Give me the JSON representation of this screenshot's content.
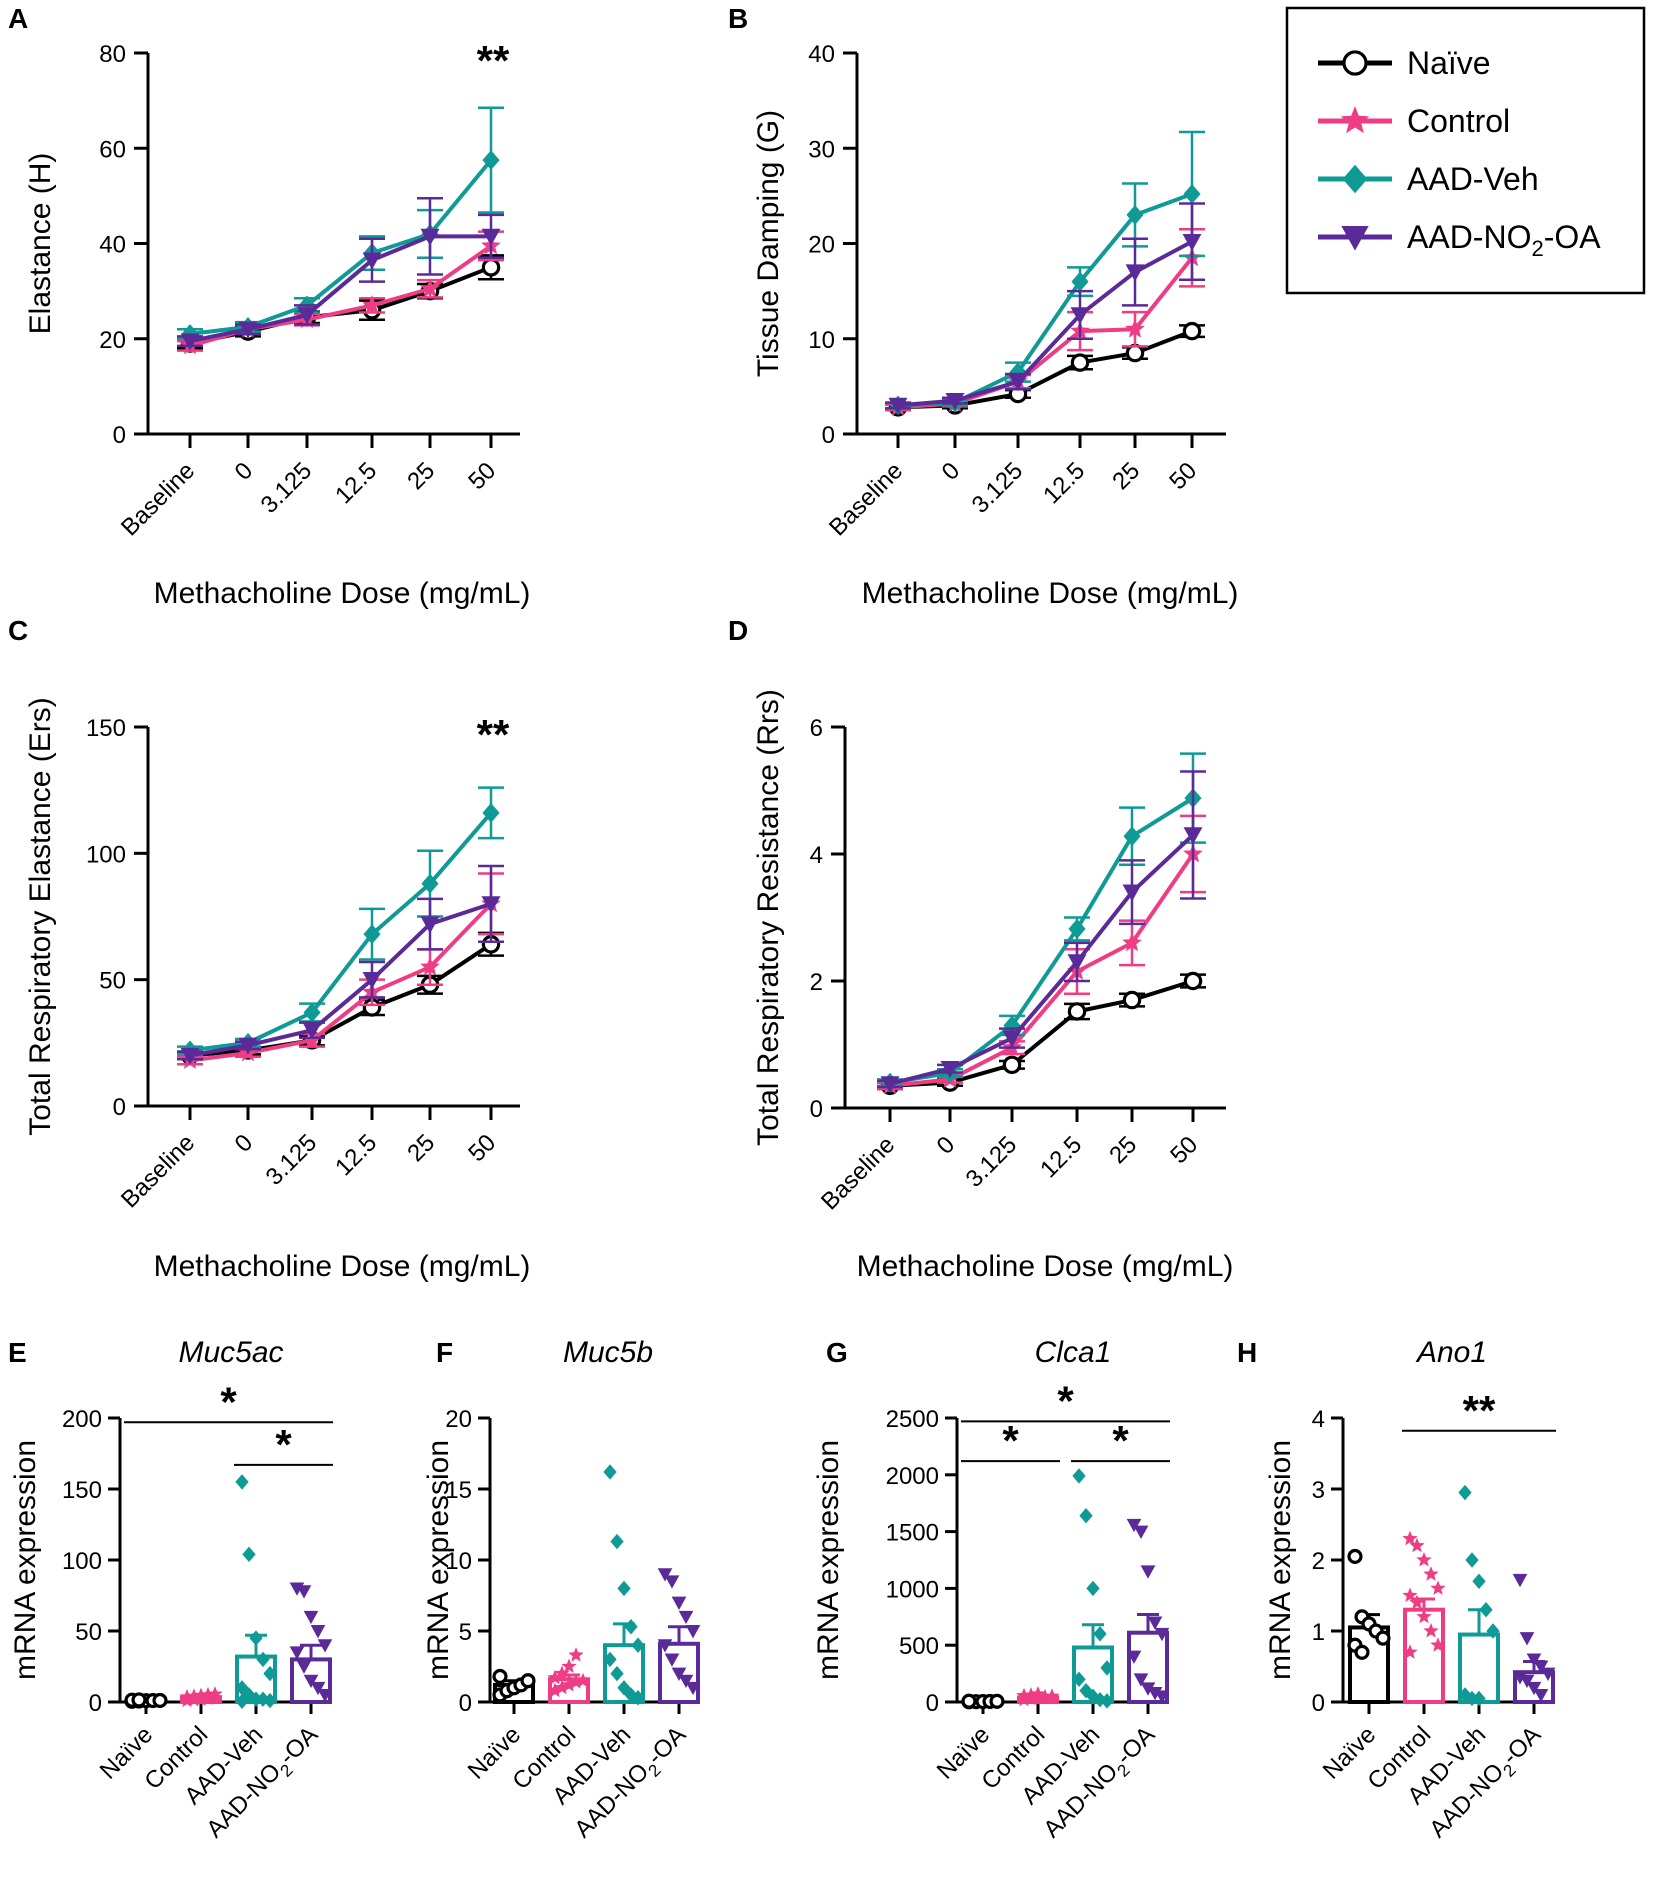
{
  "legend": {
    "items": [
      {
        "label": "Naïve",
        "label_main": "Naïve",
        "label_sub": "",
        "label_tail": "",
        "color": "#000000",
        "marker": "circle"
      },
      {
        "label": "Control",
        "label_main": "Control",
        "label_sub": "",
        "label_tail": "",
        "color": "#ee3d84",
        "marker": "star"
      },
      {
        "label": "AAD-Veh",
        "label_main": "AAD-Veh",
        "label_sub": "",
        "label_tail": "",
        "color": "#0f9a95",
        "marker": "diamond"
      },
      {
        "label": "AAD-NO2-OA",
        "label_main": "AAD-NO",
        "label_sub": "2",
        "label_tail": "-OA",
        "color": "#5b2a99",
        "marker": "triangle-down"
      }
    ]
  },
  "chart_data": [
    {
      "panel": "A",
      "type": "line",
      "categories": [
        "Baseline",
        "0",
        "3.125",
        "12.5",
        "25",
        "50"
      ],
      "xlabel": "Methacholine Dose (mg/mL)",
      "ylabel": "Elastance (H)",
      "ylim": [
        0,
        80
      ],
      "yticks": [
        0,
        20,
        40,
        60,
        80
      ],
      "yticklabels": [
        "0",
        "20",
        "40",
        "60",
        "80"
      ],
      "annotation": "**",
      "series": [
        {
          "name": "Naïve",
          "values": [
            19,
            21.5,
            24.5,
            26,
            30,
            35
          ],
          "errors": [
            1,
            1,
            1.2,
            2,
            1.5,
            2.5
          ]
        },
        {
          "name": "Control",
          "values": [
            18.5,
            22,
            24,
            27,
            30.5,
            39.5
          ],
          "errors": [
            1,
            1,
            1.2,
            1.5,
            1.8,
            3
          ]
        },
        {
          "name": "AAD-Veh",
          "values": [
            21,
            22.5,
            27,
            38,
            42,
            57.5
          ],
          "errors": [
            1,
            1,
            1.5,
            3.5,
            5,
            11
          ]
        },
        {
          "name": "AAD-NO2-OA",
          "values": [
            19.5,
            22,
            25,
            36.5,
            41.5,
            41.5
          ],
          "errors": [
            1,
            1,
            2,
            4.5,
            8,
            4.5
          ]
        }
      ]
    },
    {
      "panel": "B",
      "type": "line",
      "categories": [
        "Baseline",
        "0",
        "3.125",
        "12.5",
        "25",
        "50"
      ],
      "xlabel": "Methacholine Dose (mg/mL)",
      "ylabel": "Tissue Damping (G)",
      "ylim": [
        0,
        40
      ],
      "yticks": [
        0,
        10,
        20,
        30,
        40
      ],
      "yticklabels": [
        "0",
        "10",
        "20",
        "30",
        "40"
      ],
      "annotation": "",
      "series": [
        {
          "name": "Naïve",
          "values": [
            2.8,
            3,
            4.2,
            7.5,
            8.5,
            10.8
          ],
          "errors": [
            0.3,
            0.3,
            0.4,
            0.7,
            0.6,
            0.6
          ]
        },
        {
          "name": "Control",
          "values": [
            2.8,
            3.2,
            5.5,
            10.8,
            11,
            18.5
          ],
          "errors": [
            0.3,
            0.3,
            0.7,
            2,
            1.8,
            3
          ]
        },
        {
          "name": "AAD-Veh",
          "values": [
            3,
            3.3,
            6.5,
            16,
            23,
            25.2
          ],
          "errors": [
            0.3,
            0.3,
            1,
            1.5,
            3.3,
            6.5
          ]
        },
        {
          "name": "AAD-NO2-OA",
          "values": [
            3,
            3.5,
            5.5,
            12.5,
            17,
            20.2
          ],
          "errors": [
            0.3,
            0.3,
            0.8,
            2.5,
            3.5,
            4
          ]
        }
      ]
    },
    {
      "panel": "C",
      "type": "line",
      "categories": [
        "Baseline",
        "0",
        "3.125",
        "12.5",
        "25",
        "50"
      ],
      "xlabel": "Methacholine Dose (mg/mL)",
      "ylabel": "Total Respiratory Elastance (Ers)",
      "ylim": [
        0,
        150
      ],
      "yticks": [
        0,
        50,
        100,
        150
      ],
      "yticklabels": [
        "0",
        "50",
        "100",
        "150"
      ],
      "annotation": "**",
      "series": [
        {
          "name": "Naïve",
          "values": [
            20,
            22,
            26,
            39,
            48,
            64
          ],
          "errors": [
            1.5,
            1.5,
            2,
            3,
            3.5,
            4.5
          ]
        },
        {
          "name": "Control",
          "values": [
            18,
            21,
            26,
            45,
            55,
            80
          ],
          "errors": [
            1.5,
            1.5,
            2.5,
            5,
            7,
            12
          ]
        },
        {
          "name": "AAD-Veh",
          "values": [
            22,
            25,
            37,
            68,
            88,
            116
          ],
          "errors": [
            1.5,
            1.5,
            3.5,
            10,
            13,
            10
          ]
        },
        {
          "name": "AAD-NO2-OA",
          "values": [
            20,
            24,
            30,
            50,
            72,
            80
          ],
          "errors": [
            1.5,
            1.5,
            3,
            7,
            10,
            15
          ]
        }
      ]
    },
    {
      "panel": "D",
      "type": "line",
      "categories": [
        "Baseline",
        "0",
        "3.125",
        "12.5",
        "25",
        "50"
      ],
      "xlabel": "Methacholine Dose (mg/mL)",
      "ylabel": "Total Respiratory Resistance (Rrs)",
      "ylim": [
        0,
        6
      ],
      "yticks": [
        0,
        2,
        4,
        6
      ],
      "yticklabels": [
        "0",
        "2",
        "4",
        "6"
      ],
      "annotation": "",
      "series": [
        {
          "name": "Naïve",
          "values": [
            0.35,
            0.4,
            0.68,
            1.52,
            1.7,
            2
          ],
          "errors": [
            0.05,
            0.05,
            0.06,
            0.12,
            0.1,
            0.1
          ]
        },
        {
          "name": "Control",
          "values": [
            0.35,
            0.45,
            0.95,
            2.15,
            2.6,
            4
          ],
          "errors": [
            0.05,
            0.05,
            0.1,
            0.35,
            0.35,
            0.6
          ]
        },
        {
          "name": "AAD-Veh",
          "values": [
            0.4,
            0.55,
            1.3,
            2.82,
            4.28,
            4.88
          ],
          "errors": [
            0.05,
            0.06,
            0.15,
            0.18,
            0.45,
            0.7
          ]
        },
        {
          "name": "AAD-NO2-OA",
          "values": [
            0.38,
            0.62,
            1.1,
            2.3,
            3.4,
            4.3
          ],
          "errors": [
            0.05,
            0.06,
            0.15,
            0.3,
            0.5,
            1
          ]
        }
      ]
    },
    {
      "panel": "E",
      "type": "bar",
      "title": "Muc5ac",
      "categories": [
        "Naïve",
        "Control",
        "AAD-Veh",
        "AAD-NO2-OA"
      ],
      "ylabel": "mRNA expression",
      "ylim": [
        0,
        200
      ],
      "yticks": [
        0,
        50,
        100,
        150,
        200
      ],
      "yticklabels": [
        "0",
        "50",
        "100",
        "150",
        "200"
      ],
      "values": [
        1,
        3,
        32,
        30
      ],
      "errors": [
        0.5,
        1,
        15,
        10
      ],
      "points": [
        [
          0.5,
          0.7,
          0.9,
          1,
          1.1,
          1.3,
          1.5
        ],
        [
          1,
          1.5,
          2,
          2.5,
          3,
          3.5,
          4,
          4.5,
          5,
          5.5
        ],
        [
          155,
          104,
          45,
          30,
          20,
          10,
          5,
          2,
          2,
          1,
          0.5
        ],
        [
          80,
          78,
          60,
          50,
          40,
          35,
          25,
          15,
          10,
          5
        ]
      ],
      "significance": [
        {
          "from": 0,
          "to": 3,
          "y": 197,
          "label": "*"
        },
        {
          "from": 2,
          "to": 3,
          "y": 167,
          "label": "*"
        }
      ]
    },
    {
      "panel": "F",
      "type": "bar",
      "title": "Muc5b",
      "categories": [
        "Naïve",
        "Control",
        "AAD-Veh",
        "AAD-NO2-OA"
      ],
      "ylabel": "mRNA expression",
      "ylim": [
        0,
        20
      ],
      "yticks": [
        0,
        5,
        10,
        15,
        20
      ],
      "yticklabels": [
        "0",
        "5",
        "10",
        "15",
        "20"
      ],
      "values": [
        1.2,
        1.6,
        4,
        4.1
      ],
      "errors": [
        0.3,
        0.3,
        1.5,
        1.2
      ],
      "points": [
        [
          0.5,
          0.8,
          1,
          1.2,
          1.5,
          1.8
        ],
        [
          0.8,
          1,
          1.2,
          1.4,
          1.5,
          1.7,
          2,
          2.5,
          3.3
        ],
        [
          16.2,
          11.3,
          8,
          5.3,
          4,
          3,
          2,
          1,
          0.5,
          0.3
        ],
        [
          9,
          8.5,
          7,
          6,
          5,
          4,
          3,
          2,
          1.5,
          1
        ]
      ],
      "significance": []
    },
    {
      "panel": "G",
      "type": "bar",
      "title": "Clca1",
      "categories": [
        "Naïve",
        "Control",
        "AAD-Veh",
        "AAD-NO2-OA"
      ],
      "ylabel": "mRNA expression",
      "ylim": [
        0,
        2500
      ],
      "yticks": [
        0,
        500,
        1000,
        1500,
        2000,
        2500
      ],
      "yticklabels": [
        "0",
        "500",
        "1000",
        "1500",
        "2000",
        "2500"
      ],
      "values": [
        5,
        40,
        480,
        610
      ],
      "errors": [
        2,
        8,
        200,
        160
      ],
      "points": [
        [
          2,
          3,
          4,
          5,
          6,
          7
        ],
        [
          20,
          30,
          40,
          45,
          50,
          55,
          60,
          70
        ],
        [
          1990,
          1640,
          1000,
          600,
          300,
          200,
          100,
          50,
          20,
          10
        ],
        [
          1560,
          1500,
          1150,
          700,
          600,
          400,
          200,
          120,
          80,
          50
        ]
      ],
      "significance": [
        {
          "from": 0,
          "to": 3,
          "y": 2470,
          "label": "*"
        },
        {
          "from": 0,
          "to": 1,
          "y": 2120,
          "label": "*"
        },
        {
          "from": 2,
          "to": 3,
          "y": 2120,
          "label": "*"
        }
      ]
    },
    {
      "panel": "H",
      "type": "bar",
      "title": "Ano1",
      "categories": [
        "Naïve",
        "Control",
        "AAD-Veh",
        "AAD-NO2-OA"
      ],
      "ylabel": "mRNA expression",
      "ylim": [
        0,
        4
      ],
      "yticks": [
        0,
        1,
        2,
        3,
        4
      ],
      "yticklabels": [
        "0",
        "1",
        "2",
        "3",
        "4"
      ],
      "values": [
        1.05,
        1.3,
        0.95,
        0.42
      ],
      "errors": [
        0.18,
        0.15,
        0.35,
        0.15
      ],
      "points": [
        [
          2.05,
          1.2,
          1.1,
          1,
          0.9,
          0.8,
          0.7
        ],
        [
          2.3,
          2.2,
          2,
          1.8,
          1.6,
          1.5,
          1.4,
          1.2,
          1,
          0.8,
          0.7
        ],
        [
          2.95,
          2,
          1.7,
          1.3,
          1,
          0.1,
          0.05,
          0.05
        ],
        [
          1.72,
          0.9,
          0.6,
          0.5,
          0.4,
          0.35,
          0.3,
          0.2,
          0.1
        ]
      ],
      "significance": [
        {
          "from": 1,
          "to": 3,
          "y": 3.82,
          "label": "**"
        }
      ]
    }
  ]
}
